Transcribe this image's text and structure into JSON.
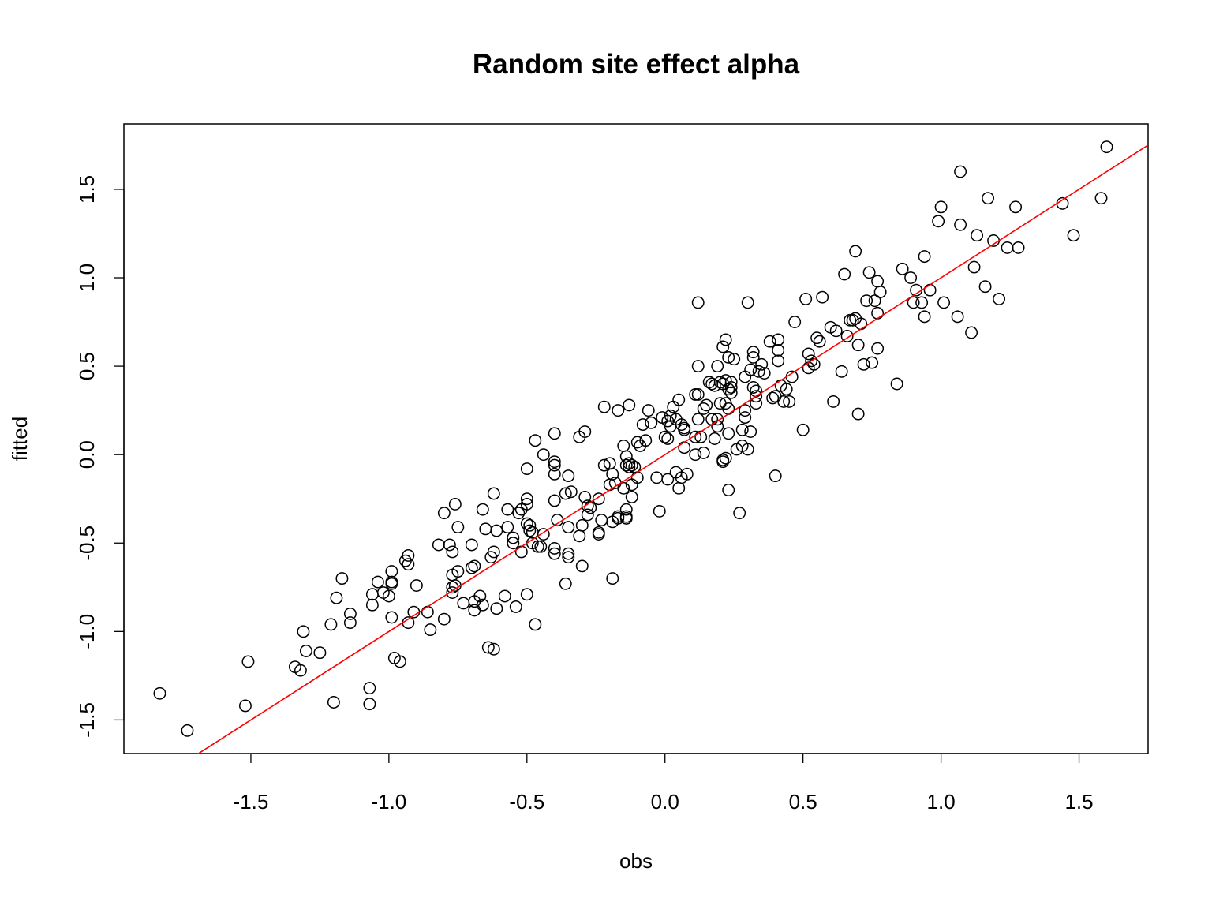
{
  "chart_data": {
    "type": "scatter",
    "title": "Random site effect alpha",
    "xlabel": "obs",
    "ylabel": "fitted",
    "xlim": [
      -1.96,
      1.75
    ],
    "ylim": [
      -1.69,
      1.87
    ],
    "x_ticks": [
      -1.5,
      -1.0,
      -0.5,
      0.0,
      0.5,
      1.0,
      1.5
    ],
    "x_tick_labels": [
      "-1.5",
      "-1.0",
      "-0.5",
      "0.0",
      "0.5",
      "1.0",
      "1.5"
    ],
    "y_ticks": [
      -1.5,
      -1.0,
      -0.5,
      0.0,
      0.5,
      1.0,
      1.5
    ],
    "y_tick_labels": [
      "-1.5",
      "-1.0",
      "-0.5",
      "0.0",
      "0.5",
      "1.0",
      "1.5"
    ],
    "grid": false,
    "point_color": "#000000",
    "reference_line": {
      "slope": 1,
      "intercept": 0,
      "color": "#ff0000"
    },
    "points": [
      [
        -1.83,
        -1.35
      ],
      [
        -1.73,
        -1.56
      ],
      [
        -1.52,
        -1.42
      ],
      [
        -1.51,
        -1.17
      ],
      [
        -1.34,
        -1.2
      ],
      [
        -1.32,
        -1.22
      ],
      [
        -1.31,
        -1.0
      ],
      [
        -1.3,
        -1.11
      ],
      [
        -1.25,
        -1.12
      ],
      [
        -1.21,
        -0.96
      ],
      [
        -1.2,
        -1.4
      ],
      [
        -1.19,
        -0.81
      ],
      [
        -1.17,
        -0.7
      ],
      [
        -1.14,
        -0.9
      ],
      [
        -1.14,
        -0.95
      ],
      [
        -1.07,
        -1.32
      ],
      [
        -1.07,
        -1.41
      ],
      [
        -1.06,
        -0.79
      ],
      [
        -1.06,
        -0.85
      ],
      [
        -1.04,
        -0.72
      ],
      [
        -1.02,
        -0.78
      ],
      [
        -1.0,
        -0.8
      ],
      [
        -0.99,
        -0.73
      ],
      [
        -0.99,
        -0.72
      ],
      [
        -0.99,
        -0.66
      ],
      [
        -0.99,
        -0.92
      ],
      [
        -0.98,
        -1.15
      ],
      [
        -0.96,
        -1.17
      ],
      [
        -0.94,
        -0.6
      ],
      [
        -0.93,
        -0.57
      ],
      [
        -0.93,
        -0.62
      ],
      [
        -0.93,
        -0.95
      ],
      [
        -0.91,
        -0.89
      ],
      [
        -0.9,
        -0.74
      ],
      [
        -0.86,
        -0.89
      ],
      [
        -0.85,
        -0.99
      ],
      [
        -0.82,
        -0.51
      ],
      [
        -0.8,
        -0.33
      ],
      [
        -0.8,
        -0.93
      ],
      [
        -0.78,
        -0.51
      ],
      [
        -0.77,
        -0.55
      ],
      [
        -0.77,
        -0.68
      ],
      [
        -0.77,
        -0.75
      ],
      [
        -0.77,
        -0.78
      ],
      [
        -0.76,
        -0.28
      ],
      [
        -0.76,
        -0.74
      ],
      [
        -0.75,
        -0.66
      ],
      [
        -0.75,
        -0.41
      ],
      [
        -0.73,
        -0.84
      ],
      [
        -0.7,
        -0.51
      ],
      [
        -0.7,
        -0.64
      ],
      [
        -0.69,
        -0.63
      ],
      [
        -0.69,
        -0.88
      ],
      [
        -0.69,
        -0.83
      ],
      [
        -0.67,
        -0.8
      ],
      [
        -0.66,
        -0.31
      ],
      [
        -0.66,
        -0.85
      ],
      [
        -0.65,
        -0.42
      ],
      [
        -0.64,
        -1.09
      ],
      [
        -0.63,
        -0.58
      ],
      [
        -0.62,
        -0.55
      ],
      [
        -0.62,
        -0.22
      ],
      [
        -0.62,
        -1.1
      ],
      [
        -0.61,
        -0.43
      ],
      [
        -0.61,
        -0.87
      ],
      [
        -0.58,
        -0.8
      ],
      [
        -0.57,
        -0.31
      ],
      [
        -0.57,
        -0.41
      ],
      [
        -0.55,
        -0.47
      ],
      [
        -0.55,
        -0.5
      ],
      [
        -0.54,
        -0.86
      ],
      [
        -0.53,
        -0.33
      ],
      [
        -0.52,
        -0.31
      ],
      [
        -0.52,
        -0.55
      ],
      [
        -0.5,
        -0.08
      ],
      [
        -0.5,
        -0.39
      ],
      [
        -0.5,
        -0.79
      ],
      [
        -0.5,
        -0.25
      ],
      [
        -0.5,
        -0.28
      ],
      [
        -0.49,
        -0.4
      ],
      [
        -0.49,
        -0.43
      ],
      [
        -0.48,
        -0.44
      ],
      [
        -0.48,
        -0.5
      ],
      [
        -0.47,
        0.08
      ],
      [
        -0.47,
        -0.96
      ],
      [
        -0.46,
        -0.52
      ],
      [
        -0.45,
        -0.52
      ],
      [
        -0.44,
        -0.45
      ],
      [
        -0.44,
        0.0
      ],
      [
        -0.4,
        0.12
      ],
      [
        -0.4,
        -0.26
      ],
      [
        -0.4,
        -0.53
      ],
      [
        -0.4,
        -0.56
      ],
      [
        -0.39,
        -0.37
      ],
      [
        -0.4,
        -0.04
      ],
      [
        -0.4,
        -0.06
      ],
      [
        -0.4,
        -0.11
      ],
      [
        -0.36,
        -0.22
      ],
      [
        -0.35,
        -0.12
      ],
      [
        -0.36,
        -0.73
      ],
      [
        -0.35,
        -0.41
      ],
      [
        -0.35,
        -0.56
      ],
      [
        -0.35,
        -0.58
      ],
      [
        -0.34,
        -0.21
      ],
      [
        -0.31,
        0.1
      ],
      [
        -0.31,
        -0.46
      ],
      [
        -0.3,
        -0.4
      ],
      [
        -0.3,
        -0.63
      ],
      [
        -0.29,
        -0.24
      ],
      [
        -0.29,
        0.13
      ],
      [
        -0.28,
        -0.29
      ],
      [
        -0.28,
        -0.34
      ],
      [
        -0.27,
        -0.3
      ],
      [
        -0.24,
        -0.45
      ],
      [
        -0.24,
        -0.25
      ],
      [
        -0.24,
        -0.44
      ],
      [
        -0.23,
        -0.37
      ],
      [
        -0.22,
        -0.06
      ],
      [
        -0.22,
        0.27
      ],
      [
        -0.2,
        -0.17
      ],
      [
        -0.2,
        -0.05
      ],
      [
        -0.19,
        -0.38
      ],
      [
        -0.19,
        -0.7
      ],
      [
        -0.19,
        -0.11
      ],
      [
        -0.18,
        -0.16
      ],
      [
        -0.17,
        -0.36
      ],
      [
        -0.17,
        -0.35
      ],
      [
        -0.17,
        0.25
      ],
      [
        -0.15,
        -0.19
      ],
      [
        -0.15,
        0.05
      ],
      [
        -0.14,
        -0.01
      ],
      [
        -0.14,
        -0.06
      ],
      [
        -0.14,
        -0.31
      ],
      [
        -0.14,
        -0.35
      ],
      [
        -0.14,
        -0.36
      ],
      [
        -0.13,
        -0.07
      ],
      [
        -0.13,
        -0.05
      ],
      [
        -0.13,
        0.28
      ],
      [
        -0.12,
        -0.17
      ],
      [
        -0.12,
        -0.24
      ],
      [
        -0.12,
        -0.06
      ],
      [
        -0.11,
        -0.07
      ],
      [
        -0.1,
        0.07
      ],
      [
        -0.1,
        -0.13
      ],
      [
        -0.09,
        0.05
      ],
      [
        -0.08,
        0.17
      ],
      [
        -0.07,
        0.08
      ],
      [
        -0.06,
        0.25
      ],
      [
        -0.05,
        0.18
      ],
      [
        -0.03,
        -0.13
      ],
      [
        -0.02,
        -0.32
      ],
      [
        -0.01,
        0.21
      ],
      [
        0.0,
        0.1
      ],
      [
        0.01,
        -0.14
      ],
      [
        0.01,
        0.09
      ],
      [
        0.01,
        0.19
      ],
      [
        0.02,
        0.22
      ],
      [
        0.02,
        0.16
      ],
      [
        0.03,
        0.27
      ],
      [
        0.04,
        -0.1
      ],
      [
        0.04,
        0.2
      ],
      [
        0.05,
        0.31
      ],
      [
        0.05,
        -0.19
      ],
      [
        0.06,
        0.17
      ],
      [
        0.06,
        -0.13
      ],
      [
        0.07,
        0.15
      ],
      [
        0.07,
        0.14
      ],
      [
        0.07,
        0.04
      ],
      [
        0.08,
        -0.11
      ],
      [
        0.11,
        0.1
      ],
      [
        0.11,
        0.0
      ],
      [
        0.11,
        0.34
      ],
      [
        0.12,
        0.34
      ],
      [
        0.12,
        0.5
      ],
      [
        0.12,
        0.86
      ],
      [
        0.12,
        0.2
      ],
      [
        0.13,
        0.1
      ],
      [
        0.14,
        0.26
      ],
      [
        0.14,
        0.01
      ],
      [
        0.15,
        0.28
      ],
      [
        0.16,
        0.41
      ],
      [
        0.17,
        0.4
      ],
      [
        0.17,
        0.2
      ],
      [
        0.18,
        0.09
      ],
      [
        0.18,
        0.39
      ],
      [
        0.19,
        0.5
      ],
      [
        0.19,
        0.2
      ],
      [
        0.19,
        0.16
      ],
      [
        0.2,
        0.29
      ],
      [
        0.2,
        0.41
      ],
      [
        0.21,
        -0.04
      ],
      [
        0.21,
        0.61
      ],
      [
        0.21,
        -0.03
      ],
      [
        0.21,
        0.4
      ],
      [
        0.22,
        0.65
      ],
      [
        0.22,
        0.42
      ],
      [
        0.22,
        -0.02
      ],
      [
        0.22,
        0.29
      ],
      [
        0.23,
        0.55
      ],
      [
        0.23,
        -0.2
      ],
      [
        0.23,
        0.12
      ],
      [
        0.23,
        0.37
      ],
      [
        0.23,
        0.26
      ],
      [
        0.24,
        0.38
      ],
      [
        0.24,
        0.41
      ],
      [
        0.24,
        0.35
      ],
      [
        0.25,
        0.54
      ],
      [
        0.26,
        0.03
      ],
      [
        0.27,
        -0.33
      ],
      [
        0.28,
        0.05
      ],
      [
        0.28,
        0.14
      ],
      [
        0.29,
        0.44
      ],
      [
        0.29,
        0.25
      ],
      [
        0.29,
        0.21
      ],
      [
        0.3,
        0.86
      ],
      [
        0.3,
        0.03
      ],
      [
        0.31,
        0.13
      ],
      [
        0.31,
        0.48
      ],
      [
        0.32,
        0.38
      ],
      [
        0.32,
        0.55
      ],
      [
        0.32,
        0.58
      ],
      [
        0.33,
        0.36
      ],
      [
        0.33,
        0.29
      ],
      [
        0.33,
        0.33
      ],
      [
        0.34,
        0.47
      ],
      [
        0.35,
        0.51
      ],
      [
        0.36,
        0.46
      ],
      [
        0.38,
        0.64
      ],
      [
        0.39,
        0.32
      ],
      [
        0.4,
        0.33
      ],
      [
        0.4,
        -0.12
      ],
      [
        0.41,
        0.65
      ],
      [
        0.41,
        0.53
      ],
      [
        0.41,
        0.59
      ],
      [
        0.42,
        0.39
      ],
      [
        0.43,
        0.3
      ],
      [
        0.44,
        0.37
      ],
      [
        0.45,
        0.3
      ],
      [
        0.46,
        0.44
      ],
      [
        0.47,
        0.75
      ],
      [
        0.5,
        0.14
      ],
      [
        0.51,
        0.88
      ],
      [
        0.52,
        0.57
      ],
      [
        0.52,
        0.49
      ],
      [
        0.53,
        0.53
      ],
      [
        0.54,
        0.51
      ],
      [
        0.55,
        0.66
      ],
      [
        0.56,
        0.64
      ],
      [
        0.57,
        0.89
      ],
      [
        0.6,
        0.72
      ],
      [
        0.61,
        0.3
      ],
      [
        0.62,
        0.7
      ],
      [
        0.64,
        0.47
      ],
      [
        0.65,
        1.02
      ],
      [
        0.66,
        0.67
      ],
      [
        0.67,
        0.76
      ],
      [
        0.68,
        0.76
      ],
      [
        0.69,
        1.15
      ],
      [
        0.69,
        0.77
      ],
      [
        0.7,
        0.23
      ],
      [
        0.7,
        0.62
      ],
      [
        0.71,
        0.74
      ],
      [
        0.72,
        0.51
      ],
      [
        0.73,
        0.87
      ],
      [
        0.74,
        1.03
      ],
      [
        0.75,
        0.52
      ],
      [
        0.76,
        0.87
      ],
      [
        0.77,
        0.98
      ],
      [
        0.77,
        0.8
      ],
      [
        0.77,
        0.6
      ],
      [
        0.78,
        0.92
      ],
      [
        0.84,
        0.4
      ],
      [
        0.86,
        1.05
      ],
      [
        0.89,
        1.0
      ],
      [
        0.9,
        0.86
      ],
      [
        0.91,
        0.93
      ],
      [
        0.93,
        0.86
      ],
      [
        0.94,
        1.12
      ],
      [
        0.94,
        0.78
      ],
      [
        0.96,
        0.93
      ],
      [
        0.99,
        1.32
      ],
      [
        1.0,
        1.4
      ],
      [
        1.01,
        0.86
      ],
      [
        1.06,
        0.78
      ],
      [
        1.07,
        1.3
      ],
      [
        1.07,
        1.6
      ],
      [
        1.11,
        0.69
      ],
      [
        1.12,
        1.06
      ],
      [
        1.13,
        1.24
      ],
      [
        1.16,
        0.95
      ],
      [
        1.17,
        1.45
      ],
      [
        1.19,
        1.21
      ],
      [
        1.21,
        0.88
      ],
      [
        1.24,
        1.17
      ],
      [
        1.27,
        1.4
      ],
      [
        1.28,
        1.17
      ],
      [
        1.44,
        1.42
      ],
      [
        1.48,
        1.24
      ],
      [
        1.58,
        1.45
      ],
      [
        1.6,
        1.74
      ]
    ]
  }
}
